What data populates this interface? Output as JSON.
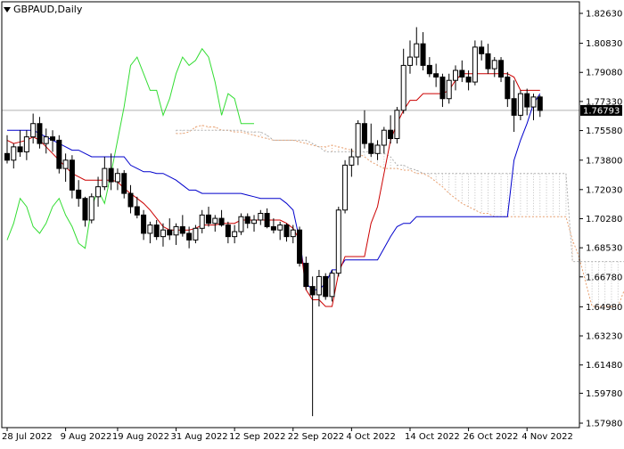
{
  "chart_title": {
    "symbol": "GBPAUD",
    "timeframe": "Daily",
    "text": "GBPAUD,Daily"
  },
  "current_price_label": "1.76793",
  "chart_data": {
    "type": "candlestick",
    "y_ticks": [
      "1.82630",
      "1.80830",
      "1.79080",
      "1.77330",
      "1.75580",
      "1.73800",
      "1.72030",
      "1.70280",
      "1.68530",
      "1.66780",
      "1.64980",
      "1.63230",
      "1.61480",
      "1.59780",
      "1.57980"
    ],
    "x_ticks": [
      "28 Jul 2022",
      "9 Aug 2022",
      "19 Aug 2022",
      "31 Aug 2022",
      "12 Sep 2022",
      "22 Sep 2022",
      "4 Oct 2022",
      "14 Oct 2022",
      "26 Oct 2022",
      "4 Nov 2022"
    ],
    "ylim": [
      1.5798,
      1.8263
    ],
    "current_price": 1.76793,
    "colors": {
      "tenkan": "#cc0000",
      "kijun": "#0000cc",
      "chikou": "#33dd33",
      "senkou_a": "#e8a070",
      "senkou_b": "#b0b0b0",
      "candle": "#000000",
      "price_line": "#b0b0b0"
    },
    "candles": [
      [
        1.742,
        1.753,
        1.736,
        1.738
      ],
      [
        1.738,
        1.748,
        1.733,
        1.746
      ],
      [
        1.746,
        1.756,
        1.74,
        1.743
      ],
      [
        1.743,
        1.756,
        1.738,
        1.752
      ],
      [
        1.752,
        1.766,
        1.748,
        1.76
      ],
      [
        1.76,
        1.764,
        1.745,
        1.748
      ],
      [
        1.748,
        1.757,
        1.742,
        1.752
      ],
      [
        1.752,
        1.756,
        1.743,
        1.75
      ],
      [
        1.75,
        1.753,
        1.73,
        1.733
      ],
      [
        1.733,
        1.742,
        1.725,
        1.738
      ],
      [
        1.738,
        1.741,
        1.715,
        1.72
      ],
      [
        1.72,
        1.726,
        1.71,
        1.715
      ],
      [
        1.715,
        1.716,
        1.698,
        1.702
      ],
      [
        1.702,
        1.718,
        1.7,
        1.716
      ],
      [
        1.716,
        1.728,
        1.71,
        1.722
      ],
      [
        1.722,
        1.74,
        1.72,
        1.733
      ],
      [
        1.733,
        1.742,
        1.72,
        1.725
      ],
      [
        1.725,
        1.733,
        1.72,
        1.73
      ],
      [
        1.73,
        1.732,
        1.715,
        1.718
      ],
      [
        1.718,
        1.723,
        1.706,
        1.71
      ],
      [
        1.71,
        1.716,
        1.703,
        1.705
      ],
      [
        1.705,
        1.708,
        1.69,
        1.694
      ],
      [
        1.694,
        1.701,
        1.688,
        1.699
      ],
      [
        1.699,
        1.702,
        1.69,
        1.692
      ],
      [
        1.692,
        1.7,
        1.686,
        1.696
      ],
      [
        1.696,
        1.703,
        1.69,
        1.693
      ],
      [
        1.693,
        1.7,
        1.687,
        1.698
      ],
      [
        1.698,
        1.705,
        1.692,
        1.694
      ],
      [
        1.694,
        1.698,
        1.685,
        1.69
      ],
      [
        1.69,
        1.699,
        1.688,
        1.697
      ],
      [
        1.697,
        1.708,
        1.694,
        1.705
      ],
      [
        1.705,
        1.71,
        1.698,
        1.7
      ],
      [
        1.7,
        1.705,
        1.695,
        1.703
      ],
      [
        1.703,
        1.708,
        1.698,
        1.699
      ],
      [
        1.699,
        1.701,
        1.688,
        1.692
      ],
      [
        1.692,
        1.699,
        1.688,
        1.695
      ],
      [
        1.695,
        1.706,
        1.693,
        1.704
      ],
      [
        1.704,
        1.706,
        1.697,
        1.7
      ],
      [
        1.7,
        1.705,
        1.695,
        1.702
      ],
      [
        1.702,
        1.708,
        1.699,
        1.706
      ],
      [
        1.706,
        1.709,
        1.697,
        1.698
      ],
      [
        1.698,
        1.703,
        1.694,
        1.696
      ],
      [
        1.696,
        1.701,
        1.69,
        1.699
      ],
      [
        1.699,
        1.7,
        1.689,
        1.692
      ],
      [
        1.692,
        1.699,
        1.688,
        1.696
      ],
      [
        1.696,
        1.698,
        1.674,
        1.676
      ],
      [
        1.676,
        1.68,
        1.66,
        1.662
      ],
      [
        1.662,
        1.668,
        1.584,
        1.657
      ],
      [
        1.657,
        1.672,
        1.65,
        1.668
      ],
      [
        1.668,
        1.67,
        1.654,
        1.656
      ],
      [
        1.656,
        1.672,
        1.653,
        1.67
      ],
      [
        1.67,
        1.71,
        1.668,
        1.708
      ],
      [
        1.708,
        1.738,
        1.706,
        1.735
      ],
      [
        1.735,
        1.745,
        1.728,
        1.74
      ],
      [
        1.74,
        1.762,
        1.735,
        1.76
      ],
      [
        1.76,
        1.768,
        1.745,
        1.748
      ],
      [
        1.748,
        1.76,
        1.74,
        1.742
      ],
      [
        1.742,
        1.75,
        1.738,
        1.747
      ],
      [
        1.747,
        1.758,
        1.742,
        1.756
      ],
      [
        1.756,
        1.765,
        1.748,
        1.751
      ],
      [
        1.751,
        1.77,
        1.748,
        1.768
      ],
      [
        1.768,
        1.805,
        1.766,
        1.795
      ],
      [
        1.795,
        1.81,
        1.79,
        1.8
      ],
      [
        1.8,
        1.818,
        1.795,
        1.808
      ],
      [
        1.808,
        1.815,
        1.792,
        1.795
      ],
      [
        1.795,
        1.8,
        1.788,
        1.79
      ],
      [
        1.79,
        1.796,
        1.782,
        1.788
      ],
      [
        1.788,
        1.79,
        1.77,
        1.775
      ],
      [
        1.775,
        1.79,
        1.772,
        1.786
      ],
      [
        1.786,
        1.795,
        1.78,
        1.792
      ],
      [
        1.792,
        1.798,
        1.785,
        1.788
      ],
      [
        1.788,
        1.792,
        1.78,
        1.785
      ],
      [
        1.785,
        1.81,
        1.783,
        1.806
      ],
      [
        1.806,
        1.81,
        1.798,
        1.802
      ],
      [
        1.802,
        1.808,
        1.79,
        1.793
      ],
      [
        1.793,
        1.8,
        1.788,
        1.798
      ],
      [
        1.798,
        1.8,
        1.785,
        1.788
      ],
      [
        1.788,
        1.791,
        1.77,
        1.775
      ],
      [
        1.775,
        1.786,
        1.755,
        1.765
      ],
      [
        1.765,
        1.78,
        1.762,
        1.778
      ],
      [
        1.778,
        1.781,
        1.765,
        1.77
      ],
      [
        1.77,
        1.778,
        1.762,
        1.776
      ],
      [
        1.776,
        1.777,
        1.764,
        1.7679
      ]
    ],
    "tenkan": [
      1.75,
      1.748,
      1.749,
      1.75,
      1.752,
      1.75,
      1.746,
      1.742,
      1.738,
      1.734,
      1.73,
      1.728,
      1.726,
      1.726,
      1.726,
      1.726,
      1.726,
      1.725,
      1.721,
      1.718,
      1.715,
      1.712,
      1.708,
      1.703,
      1.698,
      1.696,
      1.696,
      1.696,
      1.696,
      1.697,
      1.699,
      1.699,
      1.699,
      1.7,
      1.7,
      1.7,
      1.702,
      1.702,
      1.702,
      1.702,
      1.702,
      1.702,
      1.702,
      1.7,
      1.697,
      1.69,
      1.66,
      1.654,
      1.654,
      1.65,
      1.65,
      1.67,
      1.68,
      1.68,
      1.68,
      1.68,
      1.7,
      1.71,
      1.73,
      1.75,
      1.76,
      1.768,
      1.774,
      1.774,
      1.778,
      1.778,
      1.778,
      1.778,
      1.78,
      1.786,
      1.79,
      1.79,
      1.79,
      1.79,
      1.79,
      1.79,
      1.79,
      1.79,
      1.788,
      1.78,
      1.78,
      1.78,
      1.78
    ],
    "kijun": [
      1.756,
      1.756,
      1.756,
      1.756,
      1.756,
      1.754,
      1.752,
      1.75,
      1.748,
      1.746,
      1.744,
      1.744,
      1.742,
      1.74,
      1.74,
      1.74,
      1.74,
      1.74,
      1.74,
      1.735,
      1.733,
      1.731,
      1.731,
      1.73,
      1.73,
      1.728,
      1.726,
      1.723,
      1.72,
      1.72,
      1.718,
      1.718,
      1.718,
      1.718,
      1.718,
      1.718,
      1.718,
      1.717,
      1.716,
      1.715,
      1.715,
      1.715,
      1.715,
      1.712,
      1.708,
      1.69,
      1.664,
      1.66,
      1.66,
      1.664,
      1.672,
      1.672,
      1.678,
      1.678,
      1.678,
      1.678,
      1.678,
      1.678,
      1.685,
      1.692,
      1.698,
      1.7,
      1.7,
      1.704,
      1.704,
      1.704,
      1.704,
      1.704,
      1.704,
      1.704,
      1.704,
      1.704,
      1.704,
      1.704,
      1.704,
      1.704,
      1.704,
      1.704,
      1.738,
      1.75,
      1.76,
      1.772,
      1.778
    ],
    "chikou": [
      1.69,
      1.7,
      1.715,
      1.71,
      1.698,
      1.694,
      1.7,
      1.71,
      1.715,
      1.705,
      1.698,
      1.688,
      1.685,
      1.71,
      1.72,
      1.712,
      1.73,
      1.75,
      1.77,
      1.795,
      1.8,
      1.79,
      1.78,
      1.78,
      1.765,
      1.775,
      1.79,
      1.8,
      1.795,
      1.798,
      1.805,
      1.8,
      1.785,
      1.765,
      1.778,
      1.775,
      1.76,
      1.76,
      1.76
    ],
    "senkou_a": [
      1.754,
      1.754,
      1.755,
      1.758,
      1.759,
      1.758,
      1.758,
      1.756,
      1.756,
      1.755,
      1.755,
      1.754,
      1.753,
      1.752,
      1.751,
      1.75,
      1.75,
      1.75,
      1.75,
      1.749,
      1.748,
      1.747,
      1.746,
      1.746,
      1.747,
      1.746,
      1.745,
      1.744,
      1.742,
      1.74,
      1.737,
      1.735,
      1.733,
      1.733,
      1.733,
      1.732,
      1.732,
      1.73,
      1.73,
      1.728,
      1.725,
      1.722,
      1.718,
      1.715,
      1.712,
      1.71,
      1.708,
      1.706,
      1.706,
      1.704,
      1.704,
      1.704,
      1.704,
      1.704,
      1.704,
      1.704,
      1.704,
      1.704,
      1.704,
      1.704,
      1.704,
      1.69,
      1.68,
      1.665,
      1.65,
      1.65,
      1.65,
      1.65,
      1.65,
      1.66,
      1.67,
      1.68,
      1.68,
      1.68,
      1.68,
      1.68,
      1.68,
      1.68,
      1.69,
      1.705,
      1.72,
      1.73
    ],
    "senkou_b": [
      1.756,
      1.756,
      1.756,
      1.756,
      1.756,
      1.756,
      1.756,
      1.756,
      1.756,
      1.756,
      1.756,
      1.755,
      1.755,
      1.755,
      1.753,
      1.75,
      1.75,
      1.75,
      1.75,
      1.75,
      1.75,
      1.748,
      1.746,
      1.743,
      1.743,
      1.743,
      1.743,
      1.743,
      1.743,
      1.743,
      1.743,
      1.742,
      1.742,
      1.74,
      1.735,
      1.735,
      1.733,
      1.732,
      1.73,
      1.73,
      1.73,
      1.73,
      1.73,
      1.73,
      1.73,
      1.73,
      1.73,
      1.73,
      1.73,
      1.73,
      1.73,
      1.73,
      1.73,
      1.73,
      1.73,
      1.73,
      1.73,
      1.73,
      1.73,
      1.73,
      1.73,
      1.677,
      1.677,
      1.677,
      1.677,
      1.677,
      1.677,
      1.677,
      1.677,
      1.677,
      1.68,
      1.68,
      1.68,
      1.68,
      1.68,
      1.68,
      1.68,
      1.68,
      1.68,
      1.68,
      1.68,
      1.68
    ]
  }
}
